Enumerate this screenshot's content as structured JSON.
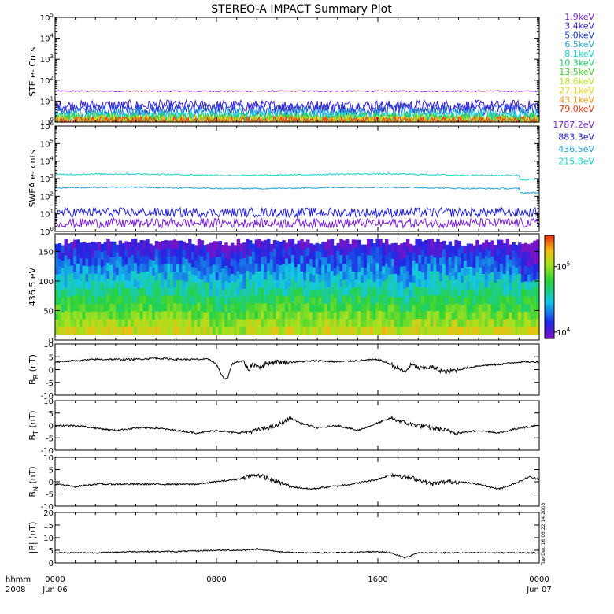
{
  "title": "STEREO-A IMPACT Summary Plot",
  "time_axis": {
    "corner_top": "hhmm",
    "corner_bottom": "2008",
    "ticks": [
      {
        "t": 0,
        "top": "0000",
        "bottom": "Jun 06"
      },
      {
        "t": 480,
        "top": "0800",
        "bottom": ""
      },
      {
        "t": 960,
        "top": "1600",
        "bottom": ""
      },
      {
        "t": 1440,
        "top": "0000",
        "bottom": "Jun 07"
      }
    ],
    "range_minutes": [
      0,
      1440
    ]
  },
  "timestamp": "Tue Dec 16 03:22:14 2008",
  "colors": {
    "1.9keV": "#7a1fd6",
    "3.4keV": "#3a1ecf",
    "5.0keV": "#1f3fd8",
    "6.5keV": "#1fa3dc",
    "8.1keV": "#18d2c8",
    "10.3keV": "#18cf60",
    "13.5keV": "#3fd42a",
    "18.6keV": "#b6e51c",
    "27.1keV": "#e8d519",
    "43.1keV": "#ef9a15",
    "79.0keV": "#e83a17",
    "1787.2eV": "#7a1fd6",
    "883.3eV": "#2020d8",
    "436.5eV": "#1fa3dc",
    "215.8eV": "#18d2c8"
  },
  "chart_data": [
    {
      "type": "line",
      "ylabel": "STE e- Cnts",
      "yscale": "log",
      "ylim": [
        1,
        100000
      ],
      "y_ticks": [
        "10^0",
        "10^1",
        "10^2",
        "10^3",
        "10^4",
        "10^5"
      ],
      "series": [
        {
          "name": "1.9keV",
          "level": 30
        },
        {
          "name": "3.4keV",
          "level": 6
        },
        {
          "name": "5.0keV",
          "level": 4
        },
        {
          "name": "6.5keV",
          "level": 2.5
        },
        {
          "name": "8.1keV",
          "level": 1.8
        },
        {
          "name": "10.3keV",
          "level": 1.5
        },
        {
          "name": "13.5keV",
          "level": 1.3
        },
        {
          "name": "18.6keV",
          "level": 1.2
        },
        {
          "name": "27.1keV",
          "level": 1.1
        },
        {
          "name": "43.1keV",
          "level": 1.05
        },
        {
          "name": "79.0keV",
          "level": 1.02
        }
      ]
    },
    {
      "type": "line",
      "ylabel": "SWEA e- cnts",
      "yscale": "log",
      "ylim": [
        1,
        1000000
      ],
      "y_ticks": [
        "10^0",
        "10^1",
        "10^2",
        "10^3",
        "10^4",
        "10^5",
        "10^6"
      ],
      "series": [
        {
          "name": "1787.2eV",
          "level": 3
        },
        {
          "name": "883.3eV",
          "level": 12
        },
        {
          "name": "436.5eV",
          "level": 300
        },
        {
          "name": "215.8eV",
          "level": 1700
        }
      ]
    },
    {
      "type": "heatmap",
      "ylabel": "436.5 eV",
      "ylim": [
        0,
        180
      ],
      "y_ticks": [
        0,
        50,
        100,
        150
      ],
      "colorbar": {
        "scale": "log",
        "range": [
          8000,
          300000
        ],
        "labels": [
          "10^4",
          "10^5"
        ]
      }
    },
    {
      "type": "line",
      "ylabel": "B_R (nT)",
      "ylim": [
        -10,
        10
      ],
      "y_ticks": [
        -10,
        -5,
        0,
        5,
        10
      ],
      "points": [
        [
          0,
          3
        ],
        [
          60,
          3.5
        ],
        [
          120,
          4
        ],
        [
          180,
          4
        ],
        [
          240,
          4
        ],
        [
          300,
          4.5
        ],
        [
          360,
          4
        ],
        [
          420,
          4
        ],
        [
          460,
          4
        ],
        [
          480,
          2
        ],
        [
          495,
          -2
        ],
        [
          505,
          -4
        ],
        [
          515,
          -3
        ],
        [
          525,
          2
        ],
        [
          540,
          3
        ],
        [
          560,
          3.5
        ],
        [
          575,
          0
        ],
        [
          590,
          2
        ],
        [
          610,
          1
        ],
        [
          630,
          2.5
        ],
        [
          660,
          3
        ],
        [
          720,
          3
        ],
        [
          780,
          3.5
        ],
        [
          840,
          3
        ],
        [
          900,
          3.5
        ],
        [
          960,
          4
        ],
        [
          1000,
          2
        ],
        [
          1040,
          -1
        ],
        [
          1060,
          2
        ],
        [
          1080,
          0.5
        ],
        [
          1120,
          1
        ],
        [
          1160,
          -1
        ],
        [
          1200,
          0
        ],
        [
          1260,
          1.5
        ],
        [
          1320,
          2
        ],
        [
          1380,
          3
        ],
        [
          1440,
          3
        ]
      ]
    },
    {
      "type": "line",
      "ylabel": "B_T (nT)",
      "ylim": [
        -10,
        10
      ],
      "y_ticks": [
        -10,
        -5,
        0,
        5,
        10
      ],
      "points": [
        [
          0,
          0
        ],
        [
          60,
          0
        ],
        [
          120,
          -1
        ],
        [
          180,
          -2
        ],
        [
          240,
          -1
        ],
        [
          300,
          -1
        ],
        [
          360,
          -2
        ],
        [
          420,
          -3
        ],
        [
          480,
          -2
        ],
        [
          540,
          -3
        ],
        [
          600,
          -2
        ],
        [
          660,
          0
        ],
        [
          700,
          3
        ],
        [
          730,
          1
        ],
        [
          780,
          -1
        ],
        [
          840,
          0
        ],
        [
          900,
          -2
        ],
        [
          960,
          1
        ],
        [
          1000,
          3
        ],
        [
          1040,
          1
        ],
        [
          1080,
          0
        ],
        [
          1120,
          -1
        ],
        [
          1160,
          -2
        ],
        [
          1200,
          -3
        ],
        [
          1260,
          -2
        ],
        [
          1320,
          -3
        ],
        [
          1380,
          -1
        ],
        [
          1440,
          0
        ]
      ]
    },
    {
      "type": "line",
      "ylabel": "B_N (nT)",
      "ylim": [
        -10,
        10
      ],
      "y_ticks": [
        -10,
        -5,
        0,
        5,
        10
      ],
      "points": [
        [
          0,
          -1
        ],
        [
          60,
          -2
        ],
        [
          120,
          -1
        ],
        [
          180,
          -1
        ],
        [
          240,
          -1
        ],
        [
          300,
          -1
        ],
        [
          360,
          -1
        ],
        [
          420,
          -1
        ],
        [
          480,
          0
        ],
        [
          540,
          1
        ],
        [
          600,
          3
        ],
        [
          640,
          1
        ],
        [
          700,
          -2
        ],
        [
          760,
          -3
        ],
        [
          820,
          -2
        ],
        [
          880,
          -1
        ],
        [
          960,
          1
        ],
        [
          1000,
          3
        ],
        [
          1040,
          2
        ],
        [
          1080,
          1
        ],
        [
          1120,
          -1
        ],
        [
          1160,
          0
        ],
        [
          1200,
          0
        ],
        [
          1260,
          -1
        ],
        [
          1320,
          -3
        ],
        [
          1380,
          0
        ],
        [
          1410,
          2
        ],
        [
          1440,
          1
        ]
      ]
    },
    {
      "type": "line",
      "ylabel": "|B| (nT)",
      "ylim": [
        0,
        20
      ],
      "y_ticks": [
        0,
        5,
        10,
        15,
        20
      ],
      "points": [
        [
          0,
          4
        ],
        [
          120,
          4
        ],
        [
          240,
          4.5
        ],
        [
          360,
          4.5
        ],
        [
          480,
          5
        ],
        [
          560,
          5
        ],
        [
          600,
          5.5
        ],
        [
          660,
          4.5
        ],
        [
          720,
          4
        ],
        [
          840,
          4
        ],
        [
          960,
          4.5
        ],
        [
          1000,
          4
        ],
        [
          1020,
          3
        ],
        [
          1040,
          2
        ],
        [
          1060,
          3
        ],
        [
          1080,
          4
        ],
        [
          1200,
          4
        ],
        [
          1320,
          4
        ],
        [
          1440,
          4
        ]
      ]
    }
  ]
}
